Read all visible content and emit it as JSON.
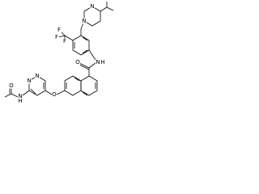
{
  "atoms": [
    {
      "label": "N"
    },
    {
      "label": "N"
    },
    {
      "label": "F"
    },
    {
      "label": "F"
    },
    {
      "label": "F"
    },
    {
      "label": "O"
    },
    {
      "label": "N"
    },
    {
      "label": "H"
    },
    {
      "label": "O"
    },
    {
      "label": "N"
    },
    {
      "label": "N"
    },
    {
      "label": "N"
    },
    {
      "label": "H"
    },
    {
      "label": "O"
    }
  ]
}
